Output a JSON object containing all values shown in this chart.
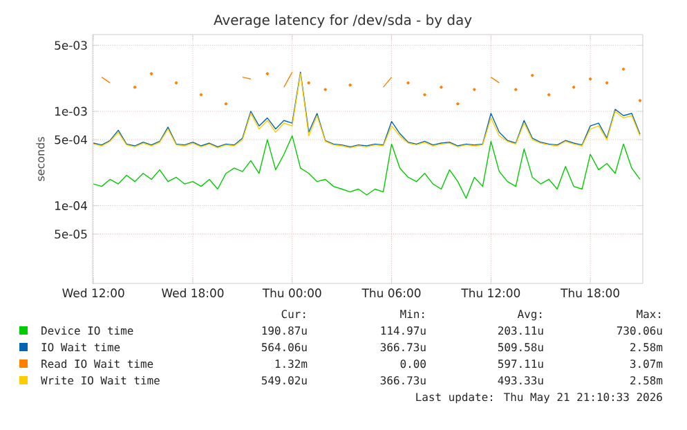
{
  "chart_data": {
    "type": "line",
    "title": "Average latency for /dev/sda - by day",
    "ylabel": "seconds",
    "log": true,
    "grid": true,
    "legend": "bottom",
    "marker": "none",
    "line_style": "solid",
    "x": [
      "2026-05-20T12:00",
      "2026-05-20T12:30",
      "2026-05-20T13:00",
      "2026-05-20T13:30",
      "2026-05-20T14:00",
      "2026-05-20T14:30",
      "2026-05-20T15:00",
      "2026-05-20T15:30",
      "2026-05-20T16:00",
      "2026-05-20T16:30",
      "2026-05-20T17:00",
      "2026-05-20T17:30",
      "2026-05-20T18:00",
      "2026-05-20T18:30",
      "2026-05-20T19:00",
      "2026-05-20T19:30",
      "2026-05-20T20:00",
      "2026-05-20T20:30",
      "2026-05-20T21:00",
      "2026-05-20T21:30",
      "2026-05-20T22:00",
      "2026-05-20T22:30",
      "2026-05-20T23:00",
      "2026-05-20T23:30",
      "2026-05-21T00:00",
      "2026-05-21T00:30",
      "2026-05-21T01:00",
      "2026-05-21T01:30",
      "2026-05-21T02:00",
      "2026-05-21T02:30",
      "2026-05-21T03:00",
      "2026-05-21T03:30",
      "2026-05-21T04:00",
      "2026-05-21T04:30",
      "2026-05-21T05:00",
      "2026-05-21T05:30",
      "2026-05-21T06:00",
      "2026-05-21T06:30",
      "2026-05-21T07:00",
      "2026-05-21T07:30",
      "2026-05-21T08:00",
      "2026-05-21T08:30",
      "2026-05-21T09:00",
      "2026-05-21T09:30",
      "2026-05-21T10:00",
      "2026-05-21T10:30",
      "2026-05-21T11:00",
      "2026-05-21T11:30",
      "2026-05-21T12:00",
      "2026-05-21T12:30",
      "2026-05-21T13:00",
      "2026-05-21T13:30",
      "2026-05-21T14:00",
      "2026-05-21T14:30",
      "2026-05-21T15:00",
      "2026-05-21T15:30",
      "2026-05-21T16:00",
      "2026-05-21T16:30",
      "2026-05-21T17:00",
      "2026-05-21T17:30",
      "2026-05-21T18:00",
      "2026-05-21T18:30",
      "2026-05-21T19:00",
      "2026-05-21T19:30",
      "2026-05-21T20:00",
      "2026-05-21T20:30",
      "2026-05-21T21:00"
    ],
    "xlim": [
      "2026-05-20T11:57",
      "2026-05-21T21:10"
    ],
    "xticks": [
      {
        "value": "2026-05-20T12:00",
        "label": "Wed 12:00"
      },
      {
        "value": "2026-05-20T18:00",
        "label": "Wed 18:00"
      },
      {
        "value": "2026-05-21T00:00",
        "label": "Thu 00:00"
      },
      {
        "value": "2026-05-21T06:00",
        "label": "Thu 06:00"
      },
      {
        "value": "2026-05-21T12:00",
        "label": "Thu 12:00"
      },
      {
        "value": "2026-05-21T18:00",
        "label": "Thu 18:00"
      }
    ],
    "ylim": [
      1.5e-05,
      0.0065
    ],
    "yticks": [
      {
        "value": 5e-05,
        "label": "5e-05"
      },
      {
        "value": 0.0001,
        "label": "1e-04"
      },
      {
        "value": 0.0005,
        "label": "5e-04"
      },
      {
        "value": 0.001,
        "label": "1e-03"
      },
      {
        "value": 0.005,
        "label": "5e-03"
      }
    ],
    "series": [
      {
        "name": "Device IO time",
        "color": "#00cc00",
        "values": [
          0.00017,
          0.00016,
          0.00019,
          0.00017,
          0.00021,
          0.00018,
          0.00022,
          0.00019,
          0.00024,
          0.00018,
          0.0002,
          0.00017,
          0.00018,
          0.00016,
          0.00019,
          0.00015,
          0.00022,
          0.00025,
          0.00023,
          0.0003,
          0.00022,
          0.0005,
          0.00024,
          0.00035,
          0.00055,
          0.00025,
          0.00022,
          0.00018,
          0.00019,
          0.00016,
          0.00015,
          0.00014,
          0.00015,
          0.00013,
          0.00015,
          0.00014,
          0.00045,
          0.00025,
          0.0002,
          0.00018,
          0.00022,
          0.00017,
          0.00015,
          0.00024,
          0.00018,
          0.00012,
          0.0002,
          0.00016,
          0.00048,
          0.00023,
          0.00018,
          0.00016,
          0.0004,
          0.0002,
          0.00017,
          0.00019,
          0.00015,
          0.00026,
          0.00016,
          0.00015,
          0.00035,
          0.00024,
          0.00028,
          0.00022,
          0.00045,
          0.00025,
          0.00019
        ]
      },
      {
        "name": "IO Wait time",
        "color": "#0066b3",
        "values": [
          0.00046,
          0.00044,
          0.00049,
          0.00063,
          0.00045,
          0.00043,
          0.00047,
          0.00044,
          0.00048,
          0.00068,
          0.00045,
          0.00044,
          0.00047,
          0.00043,
          0.00046,
          0.00042,
          0.00045,
          0.00044,
          0.00052,
          0.001,
          0.0007,
          0.00085,
          0.00065,
          0.0008,
          0.00075,
          0.0026,
          0.0006,
          0.00095,
          0.00049,
          0.00045,
          0.00044,
          0.00042,
          0.00044,
          0.00043,
          0.00045,
          0.00044,
          0.00078,
          0.00058,
          0.00047,
          0.00045,
          0.00048,
          0.00044,
          0.00046,
          0.00047,
          0.00043,
          0.00045,
          0.00044,
          0.00045,
          0.00095,
          0.0006,
          0.00049,
          0.00046,
          0.0008,
          0.00052,
          0.00047,
          0.00045,
          0.00044,
          0.00049,
          0.00046,
          0.00044,
          0.0007,
          0.00075,
          0.00052,
          0.00105,
          0.0009,
          0.00095,
          0.00057
        ]
      },
      {
        "name": "Read IO Wait time",
        "color": "#ff8000",
        "values": [
          null,
          0.0023,
          0.002,
          null,
          null,
          0.0018,
          null,
          0.0025,
          null,
          null,
          0.002,
          null,
          null,
          0.0015,
          null,
          null,
          0.0012,
          null,
          0.0023,
          0.0022,
          null,
          0.0025,
          null,
          0.0018,
          0.0026,
          null,
          0.002,
          null,
          0.0017,
          null,
          null,
          0.0019,
          null,
          null,
          null,
          0.0018,
          0.0023,
          null,
          0.002,
          null,
          0.0015,
          null,
          0.0018,
          null,
          0.0012,
          null,
          0.0017,
          null,
          0.0023,
          0.002,
          null,
          0.0017,
          null,
          0.0024,
          null,
          0.0015,
          null,
          null,
          0.0018,
          null,
          0.0022,
          null,
          0.002,
          null,
          0.0028,
          null,
          0.0013
        ]
      },
      {
        "name": "Write IO Wait time",
        "color": "#ffcc00",
        "values": [
          0.00045,
          0.00043,
          0.00048,
          0.0006,
          0.00044,
          0.00042,
          0.00046,
          0.00043,
          0.00047,
          0.00065,
          0.00044,
          0.00043,
          0.00046,
          0.00042,
          0.00045,
          0.00041,
          0.00044,
          0.00043,
          0.0005,
          0.00095,
          0.00065,
          0.0008,
          0.0006,
          0.00075,
          0.0007,
          0.0025,
          0.00055,
          0.0009,
          0.00048,
          0.00044,
          0.00043,
          0.00041,
          0.00043,
          0.00042,
          0.00044,
          0.00043,
          0.0007,
          0.00055,
          0.00046,
          0.00044,
          0.00047,
          0.00043,
          0.00045,
          0.00046,
          0.00042,
          0.00044,
          0.00043,
          0.00044,
          0.00085,
          0.00055,
          0.00048,
          0.00045,
          0.00075,
          0.0005,
          0.00046,
          0.00044,
          0.00043,
          0.00048,
          0.00045,
          0.00043,
          0.00065,
          0.0007,
          0.0005,
          0.001,
          0.00085,
          0.0009,
          0.00055
        ]
      }
    ],
    "annotations": [
      "Cur:",
      "Min:",
      "Avg:",
      "Max:",
      "190.87u",
      "114.97u",
      "203.11u",
      "730.06u",
      "564.06u",
      "366.73u",
      "509.58u",
      "2.58m",
      "1.32m",
      "0.00",
      "597.11u",
      "3.07m",
      "549.02u",
      "366.73u",
      "493.33u",
      "2.58m",
      "Last update: Thu May 21 21:10:33 2026"
    ]
  }
}
